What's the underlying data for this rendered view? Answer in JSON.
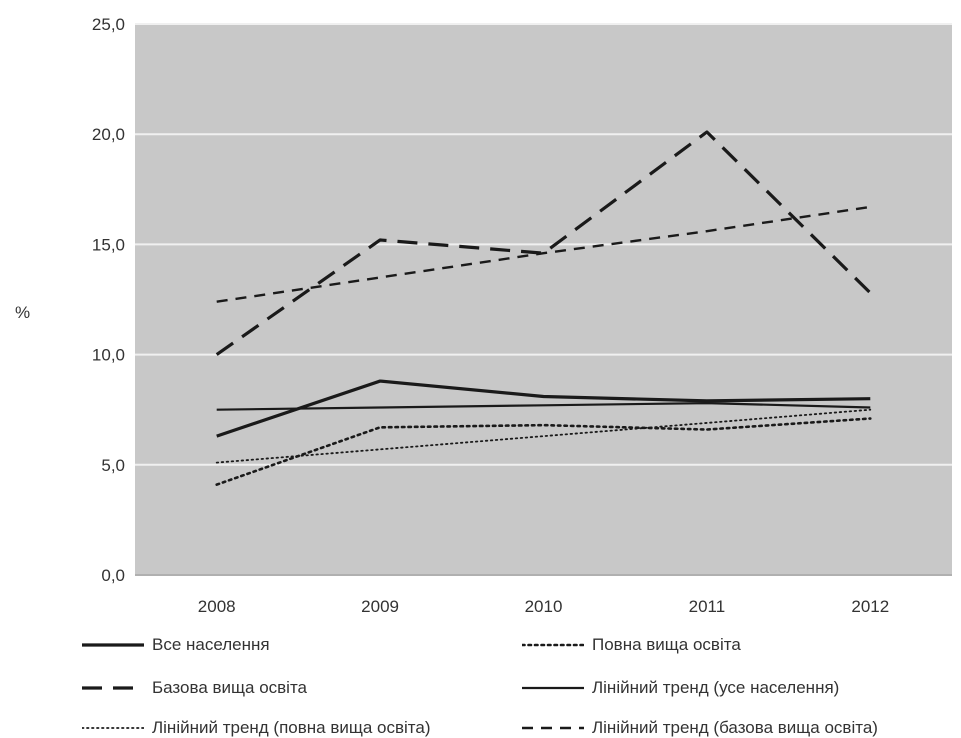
{
  "chart_data": {
    "type": "line",
    "title": "",
    "xlabel": "",
    "ylabel": "%",
    "categories": [
      "2008",
      "2009",
      "2010",
      "2011",
      "2012"
    ],
    "ylim": [
      0,
      25
    ],
    "yticks": [
      "0,0",
      "5,0",
      "10,0",
      "15,0",
      "20,0",
      "25,0"
    ],
    "grid": true,
    "legend_position": "bottom",
    "series": [
      {
        "name": "Все населення",
        "values": [
          6.3,
          8.8,
          8.1,
          7.9,
          8.0
        ],
        "style": "solid-thick",
        "color": "#1a1a1a"
      },
      {
        "name": "Повна вища освіта",
        "values": [
          4.1,
          6.7,
          6.8,
          6.6,
          7.1
        ],
        "style": "dotted",
        "color": "#1a1a1a"
      },
      {
        "name": "Базова вища освіта",
        "values": [
          10.0,
          15.2,
          14.6,
          20.1,
          12.8
        ],
        "style": "dash-long",
        "color": "#1a1a1a"
      },
      {
        "name": "Лінійний тренд (усе населення)",
        "values": [
          7.5,
          7.6,
          7.7,
          7.8,
          7.6
        ],
        "style": "solid-thin",
        "color": "#1a1a1a"
      },
      {
        "name": "Лінійний тренд (повна вища освіта)",
        "values": [
          5.1,
          5.7,
          6.3,
          6.9,
          7.5
        ],
        "style": "dotted-thin",
        "color": "#1a1a1a"
      },
      {
        "name": "Лінійний тренд (базова вища освіта)",
        "values": [
          12.4,
          13.5,
          14.6,
          15.6,
          16.7
        ],
        "style": "dash-short",
        "color": "#1a1a1a"
      }
    ],
    "colors": {
      "plot_bg": "#c8c8c8",
      "grid": "#f0f0f0",
      "text": "#333333"
    }
  }
}
